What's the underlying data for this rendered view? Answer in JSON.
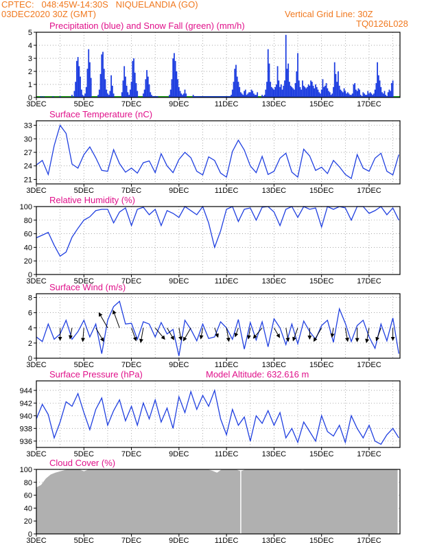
{
  "header": {
    "line1_left": "CPTEC:   048:45W-14:30S   NIQUELANDIA (GO)",
    "line2_left": "03DEC2020 30Z (GMT)",
    "line1_right": "Vertical Grid Line: 30Z",
    "line2_right": "TQ0126L028"
  },
  "colors": {
    "header": "#f0781e",
    "title": "#e0108a",
    "series": "#1f3fe0",
    "snow": "#22aa22",
    "cloud": "#b0b0b0",
    "arrow": "#000000",
    "grid": "#888888"
  },
  "x_ticks": [
    "3DEC",
    "5DEC",
    "7DEC",
    "9DEC",
    "11DEC",
    "13DEC",
    "15DEC",
    "17DEC"
  ],
  "chart_data": [
    {
      "type": "bar",
      "title": "Precipitation (blue) and Snow Fall (green) (mm/h)",
      "ylim": [
        0,
        5
      ],
      "yticks": [
        0,
        1,
        2,
        3,
        4,
        5
      ],
      "x": [
        0.2,
        0.3,
        0.7,
        1.0,
        1.5,
        1.6,
        1.65,
        1.7,
        1.75,
        1.8,
        1.85,
        1.9,
        1.95,
        2.0,
        2.05,
        2.1,
        2.15,
        2.2,
        2.25,
        2.3,
        2.6,
        2.65,
        2.7,
        2.75,
        2.8,
        2.85,
        2.9,
        2.95,
        3.0,
        3.05,
        3.1,
        3.15,
        3.2,
        3.25,
        3.6,
        3.65,
        3.7,
        3.75,
        3.8,
        3.85,
        3.9,
        3.95,
        4.0,
        4.05,
        4.1,
        4.15,
        4.2,
        4.25,
        4.5,
        4.55,
        4.6,
        4.65,
        4.7,
        4.75,
        4.8,
        4.85,
        4.9,
        4.95,
        5.0,
        5.05,
        5.1,
        5.6,
        5.65,
        5.7,
        5.75,
        5.8,
        5.85,
        5.9,
        5.95,
        6.0,
        6.05,
        6.1,
        6.15,
        6.2,
        6.25,
        6.3,
        6.6,
        6.65,
        6.7,
        6.75,
        6.8,
        6.85,
        6.9,
        6.95,
        7.0,
        7.05,
        7.1,
        7.15,
        7.2,
        7.25,
        7.3,
        7.35,
        7.4,
        7.45,
        7.5,
        7.55,
        7.6,
        7.65,
        7.7,
        7.75,
        7.8,
        7.85,
        7.9,
        7.95,
        8.0,
        8.05,
        8.1,
        8.15,
        8.2,
        8.25,
        8.3,
        8.35,
        8.4,
        8.45,
        8.5,
        8.55,
        8.6,
        8.65,
        8.7,
        8.75,
        8.8,
        8.85,
        8.9,
        8.95,
        9.0,
        9.05,
        9.1,
        9.15,
        9.2,
        9.25,
        9.3,
        9.5,
        9.55,
        9.6,
        9.65,
        9.7,
        9.75,
        9.8,
        9.85,
        9.9,
        9.95,
        10.0,
        10.05,
        10.1,
        10.15,
        10.2,
        10.25,
        10.3,
        10.35,
        10.4,
        10.45,
        10.5,
        10.55,
        10.6,
        10.65,
        10.7,
        10.75,
        10.8,
        10.85,
        10.9,
        10.95,
        11.0,
        11.05,
        11.1,
        11.15,
        11.2,
        11.25,
        11.3,
        11.35,
        11.4,
        11.45,
        11.5,
        11.55,
        11.6,
        11.65,
        11.7,
        11.75,
        11.8,
        11.85,
        11.9,
        11.95,
        12.0,
        12.05,
        12.1,
        12.15,
        12.2,
        12.25,
        12.3,
        12.35,
        12.4,
        12.45,
        12.5,
        12.55,
        12.6,
        12.65,
        12.7,
        12.75,
        12.8,
        12.85,
        12.9,
        12.95,
        13.0,
        13.05,
        13.1,
        13.15,
        13.2,
        13.25,
        13.3,
        13.35,
        13.4,
        13.45,
        13.5,
        13.55,
        13.6,
        13.65,
        13.7,
        13.75,
        13.8,
        13.85,
        13.9,
        13.95,
        14.0,
        14.05,
        14.1,
        14.15,
        14.2,
        14.25,
        14.3,
        14.35,
        14.4,
        14.45,
        14.5,
        14.55,
        14.6,
        14.65,
        14.7,
        14.75,
        14.8,
        14.85,
        14.9,
        14.95,
        15.0
      ],
      "precip": [
        0.1,
        0.1,
        0.1,
        0.1,
        0.2,
        0.5,
        1.2,
        2.8,
        3.1,
        2.4,
        1.6,
        0.6,
        0.2,
        0.1,
        0.3,
        0.8,
        2.2,
        3.7,
        2.7,
        1.5,
        0.2,
        0.6,
        1.8,
        3.3,
        3.5,
        2.2,
        1.4,
        0.6,
        0.3,
        0.2,
        0.5,
        1.7,
        0.9,
        0.3,
        0.4,
        1.3,
        2.4,
        1.6,
        0.9,
        0.4,
        0.2,
        0.6,
        1.2,
        2.8,
        3.0,
        1.9,
        1.1,
        0.5,
        0.3,
        0.6,
        1.4,
        2.1,
        1.6,
        1.0,
        0.4,
        0.2,
        0.1,
        0.1,
        0.1,
        0.1,
        0.1,
        0.2,
        0.6,
        1.4,
        3.0,
        3.4,
        2.8,
        2.0,
        1.4,
        0.8,
        0.5,
        0.3,
        0.2,
        0.3,
        0.6,
        0.3,
        0.2,
        0.1,
        0.1,
        0.1,
        0.1,
        0.1,
        0.1,
        0.1,
        0.1,
        0.1,
        0.1,
        0.1,
        0.1,
        0.1,
        0.1,
        0.1,
        0.1,
        0.1,
        0.1,
        0.1,
        0.1,
        0.1,
        0.1,
        0.1,
        0.1,
        0.1,
        0.1,
        0.1,
        0.1,
        0.1,
        0.1,
        0.1,
        0.2,
        0.6,
        1.2,
        2.2,
        2.5,
        1.6,
        1.2,
        0.8,
        0.4,
        0.3,
        0.2,
        0.5,
        0.6,
        0.2,
        0.3,
        0.4,
        0.4,
        0.6,
        0.5,
        0.3,
        0.2,
        0.2,
        0.4,
        0.2,
        0.1,
        0.2,
        0.6,
        1.2,
        3.7,
        2.6,
        1.2,
        0.8,
        0.7,
        0.6,
        0.8,
        1.0,
        2.4,
        1.3,
        0.8,
        1.0,
        0.6,
        0.9,
        1.3,
        4.8,
        2.2,
        2.6,
        1.2,
        0.9,
        0.8,
        0.7,
        0.6,
        1.1,
        2.0,
        3.4,
        1.3,
        0.8,
        0.6,
        1.3,
        0.9,
        0.8,
        0.7,
        0.8,
        1.0,
        0.9,
        1.3,
        1.2,
        0.9,
        0.7,
        1.0,
        0.8,
        0.6,
        0.4,
        0.3,
        0.6,
        1.4,
        0.8,
        0.9,
        1.1,
        0.7,
        0.5,
        0.4,
        0.2,
        0.3,
        0.8,
        2.7,
        1.8,
        1.2,
        2.0,
        0.9,
        0.6,
        0.5,
        0.4,
        0.7,
        0.5,
        0.3,
        0.4,
        0.3,
        0.2,
        0.2,
        0.3,
        1.0,
        1.1,
        0.6,
        0.5,
        0.7,
        0.6,
        0.2,
        0.1,
        0.4,
        0.3,
        0.2,
        0.2,
        0.5,
        0.3,
        0.4,
        0.3,
        0.2,
        0.3,
        0.6,
        1.1,
        2.7,
        1.7,
        1.3,
        0.8,
        0.4,
        0.3,
        0.5,
        0.2,
        0.1,
        0.4,
        0.6,
        0.5,
        1.1,
        1.3,
        2.5,
        1.4
      ],
      "snow": "0 throughout"
    },
    {
      "type": "line",
      "title": "Surface Temperature (nC)",
      "ylim": [
        20,
        34
      ],
      "yticks": [
        21,
        24,
        27,
        30,
        33
      ],
      "x": [
        0,
        0.25,
        0.5,
        0.75,
        1.0,
        1.25,
        1.5,
        1.75,
        2.0,
        2.25,
        2.5,
        2.75,
        3.0,
        3.25,
        3.5,
        3.75,
        4.0,
        4.25,
        4.5,
        4.75,
        5.0,
        5.25,
        5.5,
        5.75,
        6.0,
        6.25,
        6.5,
        6.75,
        7.0,
        7.25,
        7.5,
        7.75,
        8.0,
        8.25,
        8.5,
        8.75,
        9.0,
        9.25,
        9.5,
        9.75,
        10.0,
        10.25,
        10.5,
        10.75,
        11.0,
        11.25,
        11.5,
        11.75,
        12.0,
        12.25,
        12.5,
        12.75,
        13.0,
        13.25,
        13.5,
        13.75,
        14.0,
        14.25,
        14.5,
        14.75,
        15.0,
        15.25
      ],
      "values": [
        24.2,
        25.2,
        22.1,
        28.5,
        33.0,
        31.2,
        24.4,
        23.5,
        26.5,
        28.2,
        25.8,
        23.0,
        22.8,
        27.6,
        24.5,
        22.6,
        23.5,
        22.4,
        24.7,
        25.1,
        22.5,
        26.7,
        24.0,
        22.5,
        25.4,
        27.0,
        25.8,
        22.8,
        22.0,
        26.0,
        25.2,
        22.4,
        21.5,
        27.2,
        29.7,
        27.5,
        24.0,
        22.5,
        26.1,
        22.1,
        22.8,
        25.7,
        26.8,
        22.6,
        21.5,
        27.7,
        26.2,
        23.0,
        23.7,
        22.3,
        25.2,
        23.8,
        22.1,
        21.2,
        26.5,
        23.5,
        22.8,
        25.7,
        26.8,
        22.8,
        22.0,
        26.5
      ]
    },
    {
      "type": "line",
      "title": "Relative Humidity (%)",
      "ylim": [
        0,
        100
      ],
      "yticks": [
        0,
        20,
        40,
        60,
        80,
        100
      ],
      "x": [
        0,
        0.25,
        0.5,
        0.75,
        1.0,
        1.25,
        1.5,
        1.75,
        2.0,
        2.25,
        2.5,
        2.75,
        3.0,
        3.25,
        3.5,
        3.75,
        4.0,
        4.25,
        4.5,
        4.75,
        5.0,
        5.25,
        5.5,
        5.75,
        6.0,
        6.25,
        6.5,
        6.75,
        7.0,
        7.25,
        7.5,
        7.75,
        8.0,
        8.25,
        8.5,
        8.75,
        9.0,
        9.25,
        9.5,
        9.75,
        10.0,
        10.25,
        10.5,
        10.75,
        11.0,
        11.25,
        11.5,
        11.75,
        12.0,
        12.25,
        12.5,
        12.75,
        13.0,
        13.25,
        13.5,
        13.75,
        14.0,
        14.25,
        14.5,
        14.75,
        15.0,
        15.25
      ],
      "values": [
        54,
        58,
        62,
        43,
        27,
        33,
        55,
        68,
        80,
        85,
        94,
        96,
        96,
        76,
        92,
        98,
        72,
        96,
        99,
        88,
        96,
        72,
        94,
        90,
        84,
        100,
        94,
        88,
        100,
        76,
        40,
        64,
        96,
        100,
        78,
        96,
        98,
        80,
        99,
        100,
        92,
        72,
        96,
        100,
        84,
        100,
        96,
        98,
        70,
        100,
        96,
        100,
        98,
        80,
        100,
        100,
        90,
        94,
        100,
        88,
        98,
        80
      ]
    },
    {
      "type": "line",
      "title": "Surface Wind (m/s)",
      "ylim": [
        0,
        8.5
      ],
      "yticks": [
        0,
        2,
        4,
        6,
        8
      ],
      "x": [
        0,
        0.25,
        0.5,
        0.75,
        1.0,
        1.25,
        1.5,
        1.75,
        2.0,
        2.25,
        2.5,
        2.75,
        3.0,
        3.25,
        3.5,
        3.75,
        4.0,
        4.25,
        4.5,
        4.75,
        5.0,
        5.25,
        5.5,
        5.75,
        6.0,
        6.25,
        6.5,
        6.75,
        7.0,
        7.25,
        7.5,
        7.75,
        8.0,
        8.25,
        8.5,
        8.75,
        9.0,
        9.25,
        9.5,
        9.75,
        10.0,
        10.25,
        10.5,
        10.75,
        11.0,
        11.25,
        11.5,
        11.75,
        12.0,
        12.25,
        12.5,
        12.75,
        13.0,
        13.25,
        13.5,
        13.75,
        14.0,
        14.25,
        14.5,
        14.75,
        15.0,
        15.25
      ],
      "values": [
        2.8,
        2.2,
        4.5,
        2.5,
        3.2,
        5.0,
        2.5,
        3.5,
        5.0,
        2.8,
        4.5,
        0.6,
        5.0,
        6.8,
        7.5,
        4.5,
        4.6,
        2.5,
        4.8,
        4.5,
        2.8,
        4.7,
        3.2,
        3.8,
        0.3,
        5.0,
        3.8,
        2.3,
        4.5,
        2.6,
        2.8,
        4.8,
        4.0,
        2.5,
        5.1,
        1.2,
        4.7,
        2.4,
        4.8,
        1.5,
        5.2,
        4.0,
        1.8,
        4.5,
        1.9,
        4.9,
        3.5,
        2.5,
        4.3,
        5.0,
        2.1,
        6.5,
        4.6,
        2.2,
        4.3,
        5.0,
        2.8,
        1.3,
        4.5,
        2.3,
        5.3,
        0.6
      ],
      "arrows": {
        "x": [
          1.0,
          1.5,
          2.0,
          2.5,
          3.0,
          3.5,
          4.0,
          4.5,
          5.0,
          5.5,
          6.0,
          6.5,
          7.0,
          7.5,
          8.0,
          8.5,
          9.0,
          9.5,
          10.0,
          10.5,
          11.0,
          11.5,
          12.0,
          12.5,
          13.0,
          13.5,
          14.0,
          14.5,
          15.0
        ],
        "speed": [
          2.0,
          1.8,
          2.2,
          2.5,
          2.8,
          3.0,
          2.2,
          2.4,
          2.4,
          2.2,
          2.0,
          2.4,
          1.8,
          1.6,
          2.2,
          1.5,
          1.8,
          2.2,
          1.8,
          2.2,
          2.2,
          1.8,
          2.5,
          1.5,
          2.2,
          2.2,
          2.4,
          2.2,
          2.0
        ],
        "direction_deg": [
          90,
          100,
          95,
          60,
          240,
          250,
          70,
          100,
          50,
          60,
          80,
          120,
          100,
          70,
          80,
          110,
          100,
          130,
          60,
          80,
          110,
          90,
          120,
          100,
          80,
          90,
          100,
          110,
          90
        ]
      }
    },
    {
      "type": "line",
      "title": "Surface Pressure (hPa)",
      "annotation": "Model Altitude: 632.616  m",
      "ylim": [
        935,
        945.5
      ],
      "yticks": [
        936,
        938,
        940,
        942,
        944
      ],
      "x": [
        0,
        0.25,
        0.5,
        0.75,
        1.0,
        1.25,
        1.5,
        1.75,
        2.0,
        2.25,
        2.5,
        2.75,
        3.0,
        3.25,
        3.5,
        3.75,
        4.0,
        4.25,
        4.5,
        4.75,
        5.0,
        5.25,
        5.5,
        5.75,
        6.0,
        6.25,
        6.5,
        6.75,
        7.0,
        7.25,
        7.5,
        7.75,
        8.0,
        8.25,
        8.5,
        8.75,
        9.0,
        9.25,
        9.5,
        9.75,
        10.0,
        10.25,
        10.5,
        10.75,
        11.0,
        11.25,
        11.5,
        11.75,
        12.0,
        12.25,
        12.5,
        12.75,
        13.0,
        13.25,
        13.5,
        13.75,
        14.0,
        14.25,
        14.5,
        14.75,
        15.0,
        15.25
      ],
      "values": [
        939.5,
        941.8,
        940.2,
        936.5,
        939.0,
        942.2,
        941.5,
        943.5,
        940.5,
        937.8,
        941.0,
        942.8,
        938.5,
        940.8,
        942.5,
        939.2,
        941.5,
        938.5,
        942.0,
        939.5,
        942.5,
        939.0,
        941.2,
        938.0,
        943.0,
        940.5,
        943.8,
        941.0,
        943.2,
        941.5,
        944.0,
        939.5,
        937.0,
        941.0,
        938.5,
        939.8,
        936.0,
        940.0,
        938.8,
        940.8,
        938.5,
        940.5,
        936.5,
        938.0,
        935.8,
        939.0,
        937.5,
        936.0,
        940.0,
        937.5,
        936.8,
        938.5,
        935.8,
        940.0,
        938.0,
        936.5,
        938.5,
        936.0,
        935.5,
        937.0,
        938.0,
        936.5
      ]
    },
    {
      "type": "area",
      "title": "Cloud Cover (%)",
      "ylim": [
        0,
        100
      ],
      "yticks": [
        0,
        20,
        40,
        60,
        80,
        100
      ],
      "x": [
        0,
        0.2,
        0.4,
        0.6,
        0.8,
        1.0,
        1.2,
        1.4,
        1.6,
        1.8,
        2.0,
        2.2,
        2.4,
        2.6,
        2.8,
        3.0,
        3.2,
        3.4,
        3.6,
        3.8,
        4.0,
        4.2,
        4.4,
        4.6,
        4.8,
        5.0,
        5.2,
        5.4,
        5.6,
        5.8,
        6.0,
        6.2,
        6.4,
        6.6,
        6.8,
        7.0,
        7.2,
        7.4,
        7.6,
        7.8,
        8.0,
        8.2,
        8.4,
        8.6,
        8.8,
        9.0,
        9.2,
        9.4,
        9.6,
        9.8,
        10.0,
        10.2,
        10.4,
        10.6,
        10.8,
        11.0,
        11.2,
        11.4,
        11.6,
        11.8,
        12.0,
        12.2,
        12.4,
        12.6,
        12.8,
        13.0,
        13.2,
        13.4,
        13.6,
        13.8,
        14.0,
        14.2,
        14.4,
        14.6,
        14.8,
        15.0,
        15.2
      ],
      "values": [
        72,
        76,
        86,
        92,
        95,
        97,
        99,
        100,
        100,
        100,
        97,
        100,
        100,
        100,
        100,
        100,
        100,
        100,
        100,
        100,
        100,
        100,
        100,
        100,
        100,
        100,
        100,
        100,
        100,
        100,
        100,
        100,
        100,
        100,
        100,
        100,
        100,
        98,
        95,
        100,
        100,
        100,
        100,
        97,
        100,
        100,
        100,
        100,
        100,
        100,
        100,
        100,
        100,
        100,
        100,
        100,
        99,
        100,
        100,
        100,
        100,
        100,
        100,
        100,
        100,
        100,
        100,
        100,
        100,
        100,
        100,
        100,
        100,
        100,
        100,
        100,
        100
      ]
    }
  ]
}
